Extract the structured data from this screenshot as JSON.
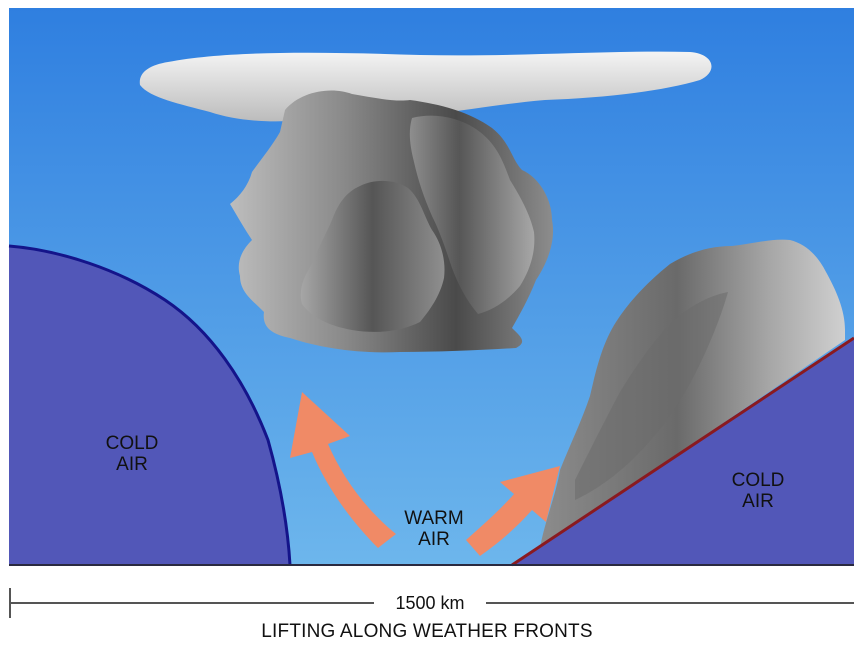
{
  "labels": {
    "cold_air_left": "COLD\nAIR",
    "cold_air_right": "COLD\nAIR",
    "warm_air": "WARM\nAIR"
  },
  "scale": {
    "distance": "1500 km"
  },
  "caption": "LIFTING ALONG WEATHER FRONTS",
  "colors": {
    "sky_top": "#2f7fe0",
    "sky_bottom": "#6db6ec",
    "cold_air": "#5257b8",
    "cold_front_line": "#14148a",
    "warm_front_line": "#8a1a20",
    "arrow": "#f08a66",
    "anvil": "#e2e2e2",
    "cloud_dark": "#4a4a4a",
    "cloud_light": "#9a9a9a"
  },
  "icons": {
    "arrows": "curved-up-arrow"
  }
}
